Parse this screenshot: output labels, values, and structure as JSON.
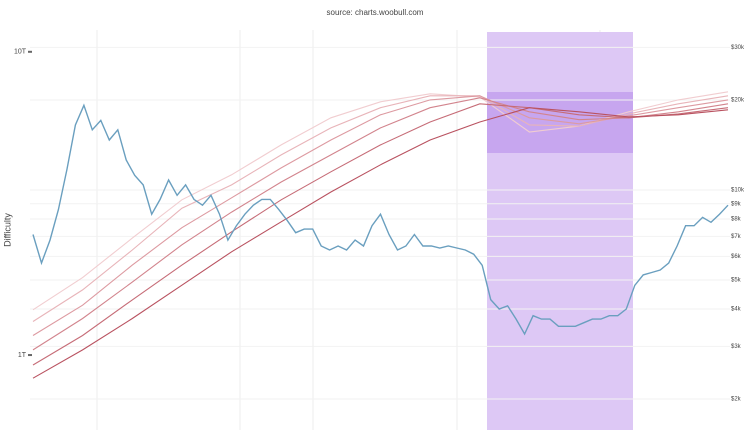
{
  "chart_data": {
    "type": "line",
    "subtitle": "source: charts.woobull.com",
    "ylabel": "Difficulty",
    "log_scale": true,
    "grid": true,
    "ylim": [
      0.566,
      11.8
    ],
    "yticks": [
      {
        "value": 10,
        "label": "10T"
      },
      {
        "value": 1,
        "label": "1T"
      }
    ],
    "y2lim": [
      1575,
      34300
    ],
    "y2ticks": [
      {
        "value": 30000,
        "label": "$30k"
      },
      {
        "value": 20000,
        "label": "$20k"
      },
      {
        "value": 10000,
        "label": "$10k"
      },
      {
        "value": 9000,
        "label": "$9k"
      },
      {
        "value": 8000,
        "label": "$8k"
      },
      {
        "value": 7000,
        "label": "$7k"
      },
      {
        "value": 6000,
        "label": "$6k"
      },
      {
        "value": 5000,
        "label": "$5k"
      },
      {
        "value": 4000,
        "label": "$4k"
      },
      {
        "value": 3000,
        "label": "$3k"
      },
      {
        "value": 2000,
        "label": "$2k"
      }
    ],
    "series": [
      {
        "color": "#f1cdd0",
        "values": [
          1.41,
          1.8,
          2.43,
          3.25,
          3.93,
          4.93,
          6.06,
          6.84,
          7.27,
          7.1,
          5.44,
          5.69,
          6.34,
          6.94,
          7.38
        ]
      },
      {
        "color": "#e8b4b9",
        "values": [
          1.29,
          1.64,
          2.22,
          3.05,
          3.64,
          4.57,
          5.61,
          6.54,
          7.16,
          7.16,
          5.74,
          5.69,
          6.24,
          6.74,
          7.16
        ]
      },
      {
        "color": "#dd9aa1",
        "values": [
          1.16,
          1.46,
          1.98,
          2.63,
          3.3,
          4.14,
          5.12,
          6.2,
          6.94,
          7.16,
          6.06,
          5.79,
          6.15,
          6.54,
          6.94
        ]
      },
      {
        "color": "#d2848d",
        "values": [
          1.04,
          1.32,
          1.74,
          2.31,
          2.96,
          3.72,
          4.57,
          5.61,
          6.54,
          7.05,
          6.34,
          5.97,
          6.06,
          6.34,
          6.74
        ]
      },
      {
        "color": "#c66c77",
        "values": [
          0.927,
          1.16,
          1.52,
          1.98,
          2.55,
          3.25,
          4.02,
          4.93,
          5.87,
          6.74,
          6.54,
          6.2,
          6.06,
          6.24,
          6.54
        ]
      },
      {
        "color": "#b95260",
        "values": [
          0.839,
          1.04,
          1.32,
          1.7,
          2.19,
          2.75,
          3.45,
          4.24,
          5.12,
          5.87,
          6.54,
          6.34,
          6.1,
          6.2,
          6.44
        ]
      },
      {
        "color": "#6a9fbf",
        "axis": "y2",
        "values": [
          7100,
          5700,
          6800,
          8600,
          11700,
          16500,
          19200,
          15900,
          17100,
          14700,
          15900,
          12600,
          11200,
          10400,
          8300,
          9300,
          10800,
          9600,
          10400,
          9300,
          8900,
          9600,
          8300,
          6800,
          7600,
          8300,
          8900,
          9300,
          9300,
          8600,
          7900,
          7200,
          7400,
          7400,
          6500,
          6300,
          6500,
          6300,
          6800,
          6500,
          7600,
          8300,
          7100,
          6300,
          6500,
          7100,
          6500,
          6500,
          6400,
          6500,
          6400,
          6300,
          6100,
          5600,
          4300,
          4000,
          4100,
          3700,
          3300,
          3800,
          3700,
          3700,
          3500,
          3500,
          3500,
          3600,
          3700,
          3700,
          3800,
          3800,
          4000,
          4800,
          5200,
          5300,
          5400,
          5700,
          6500,
          7600,
          7600,
          8100,
          7800,
          8300,
          8900
        ]
      }
    ]
  }
}
